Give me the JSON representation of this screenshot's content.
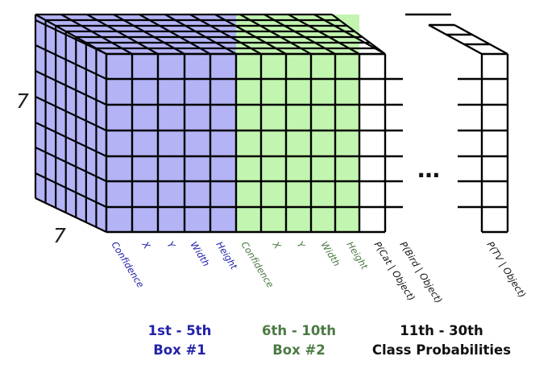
{
  "grid": {
    "rows_label": "7",
    "cols_label": "7",
    "ellipsis": "…"
  },
  "colors": {
    "box1_fill": "#b3b3f5",
    "box1_text": "#2222aa",
    "box2_fill": "#c2f5b0",
    "box2_text": "#4b7a43",
    "class_text": "#111111",
    "line": "#000000"
  },
  "channels": [
    {
      "label": "Confidence",
      "group": "box1"
    },
    {
      "label": "X",
      "group": "box1"
    },
    {
      "label": "Y",
      "group": "box1"
    },
    {
      "label": "Width",
      "group": "box1"
    },
    {
      "label": "Height",
      "group": "box1"
    },
    {
      "label": "Confidence",
      "group": "box2"
    },
    {
      "label": "X",
      "group": "box2"
    },
    {
      "label": "Y",
      "group": "box2"
    },
    {
      "label": "Width",
      "group": "box2"
    },
    {
      "label": "Height",
      "group": "box2"
    },
    {
      "label": "P(Cat | Object)",
      "group": "class"
    },
    {
      "label": "P(Bird | Object)",
      "group": "class"
    },
    {
      "label": "P(TV | Object)",
      "group": "class"
    }
  ],
  "groups": {
    "box1": {
      "range": "1st - 5th",
      "name": "Box #1"
    },
    "box2": {
      "range": "6th - 10th",
      "name": "Box #2"
    },
    "class": {
      "range": "11th - 30th",
      "name": "Class Probabilities"
    }
  }
}
